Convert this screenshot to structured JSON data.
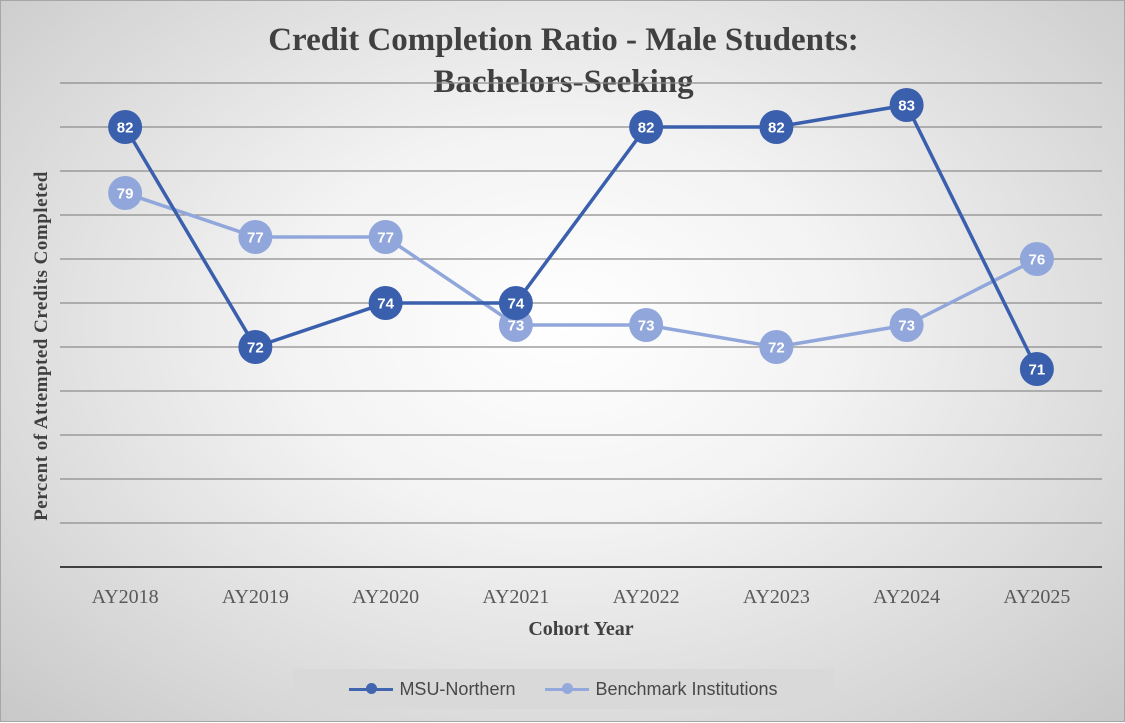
{
  "chart_data": {
    "type": "line",
    "title": "Credit Completion Ratio - Male Students:\nBachelors-Seeking",
    "xlabel": "Cohort Year",
    "ylabel": "Percent of  Attempted Credits Completed",
    "categories": [
      "AY2018",
      "AY2019",
      "AY2020",
      "AY2021",
      "AY2022",
      "AY2023",
      "AY2024",
      "AY2025"
    ],
    "ylim": [
      62,
      82
    ],
    "series": [
      {
        "name": "MSU-Northern",
        "values": [
          82,
          72,
          74,
          74,
          82,
          82,
          83,
          71
        ],
        "color": "#3a5fad"
      },
      {
        "name": "Benchmark Institutions",
        "values": [
          79,
          77,
          77,
          73,
          73,
          72,
          73,
          76
        ],
        "color": "#91a7db"
      }
    ],
    "data_labels": true,
    "grid": true,
    "legend_position": "bottom"
  }
}
